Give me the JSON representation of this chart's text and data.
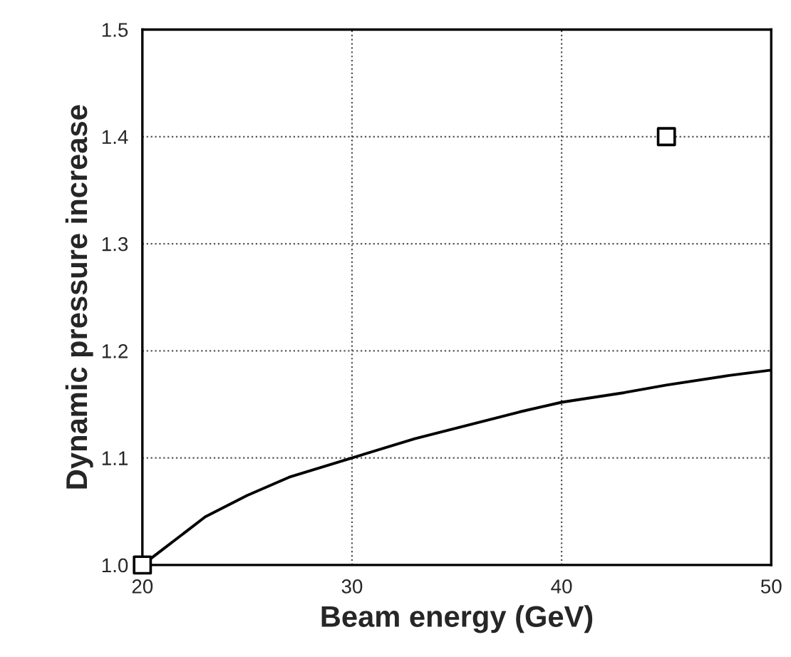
{
  "chart_data": {
    "type": "line",
    "xlabel": "Beam energy (GeV)",
    "ylabel": "Dynamic pressure increase",
    "series": [
      {
        "color": "#000000",
        "marker": "none",
        "x": [
          20,
          21,
          22,
          23,
          25,
          27,
          30,
          33,
          35,
          38,
          40,
          43,
          45,
          48,
          50
        ],
        "values": [
          1.0,
          1.015,
          1.03,
          1.045,
          1.065,
          1.082,
          1.1,
          1.118,
          1.128,
          1.143,
          1.152,
          1.161,
          1.168,
          1.177,
          1.182
        ]
      },
      {
        "type": "scatter",
        "color": "#000000",
        "marker": "square",
        "x": [
          20,
          45
        ],
        "values": [
          1.0,
          1.4
        ]
      }
    ],
    "xlim": [
      20,
      50
    ],
    "ylim": [
      1.0,
      1.5
    ],
    "xticks": [
      20,
      30,
      40,
      50
    ],
    "yticks": [
      {
        "value": 1.0,
        "label": "1.0"
      },
      {
        "value": 1.1,
        "label": "1.1"
      },
      {
        "value": 1.2,
        "label": "1.2"
      },
      {
        "value": 1.3,
        "label": "1.3"
      },
      {
        "value": 1.4,
        "label": "1.4"
      },
      {
        "value": 1.5,
        "label": "1.5"
      }
    ],
    "grid": true,
    "line_style": "solid"
  }
}
